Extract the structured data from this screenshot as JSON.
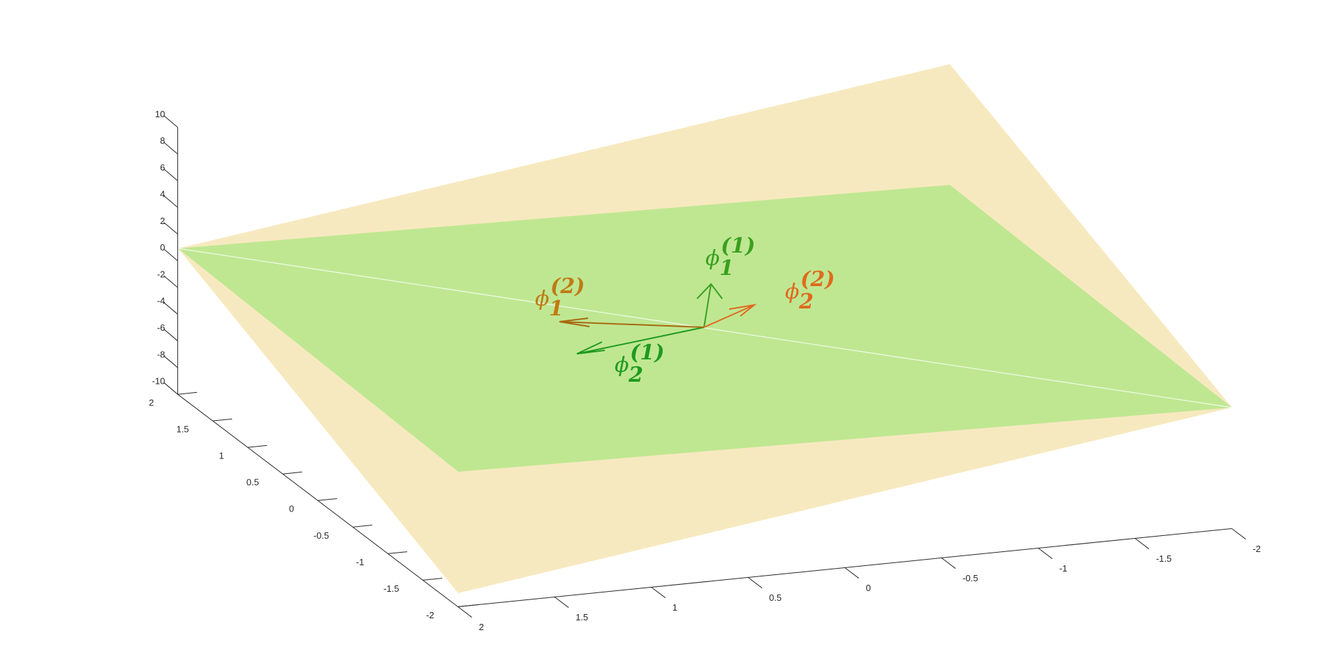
{
  "chart_data": {
    "type": "surface3d",
    "xlim": [
      -2,
      2
    ],
    "ylim": [
      -2,
      2
    ],
    "zlim": [
      -10,
      10
    ],
    "xticks": [
      -2,
      -1.5,
      -1,
      -0.5,
      0,
      0.5,
      1,
      1.5,
      2
    ],
    "yticks": [
      -2,
      -1.5,
      -1,
      -0.5,
      0,
      0.5,
      1,
      1.5,
      2
    ],
    "zticks": [
      -10,
      -8,
      -6,
      -4,
      -2,
      0,
      2,
      4,
      6,
      8,
      10
    ],
    "annotations": [
      {
        "symbol": "ϕ",
        "sub": "1",
        "sup": "(1)",
        "color": "#3aa01e"
      },
      {
        "symbol": "ϕ",
        "sub": "2",
        "sup": "(2)",
        "color": "#e06a1c"
      },
      {
        "symbol": "ϕ",
        "sub": "1",
        "sup": "(2)",
        "color": "#c07a14"
      },
      {
        "symbol": "ϕ",
        "sub": "2",
        "sup": "(1)",
        "color": "#1f9a1f"
      }
    ]
  }
}
